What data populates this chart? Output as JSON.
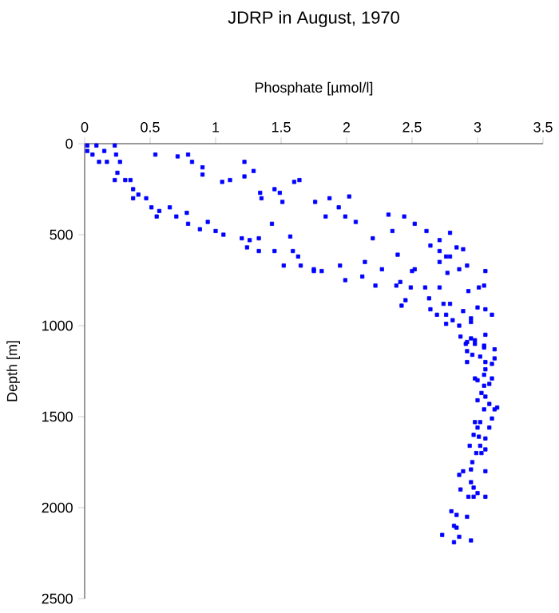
{
  "chart_data": {
    "type": "scatter",
    "title": "JDRP in August, 1970",
    "xlabel": "Phosphate [µmol/l]",
    "ylabel": "Depth [m]",
    "xlim": [
      0,
      3.5
    ],
    "xticks": [
      0,
      0.5,
      1,
      1.5,
      2,
      2.5,
      3,
      3.5
    ],
    "ylim": [
      2500,
      0
    ],
    "yticks": [
      0,
      500,
      1000,
      1500,
      2000,
      2500
    ],
    "grid": false,
    "marker": "square",
    "series": [
      {
        "color": "#0000ff",
        "x": [
          0.02,
          0.09,
          0.23,
          0.02,
          0.06,
          0.15,
          0.24,
          0.11,
          0.17,
          0.27,
          0.23,
          0.25,
          0.31,
          0.35,
          0.37,
          0.41,
          0.37,
          0.47,
          0.51,
          0.57,
          0.55,
          0.65,
          0.7,
          0.78,
          0.79,
          0.88,
          0.94,
          1.0,
          1.06,
          1.2,
          1.26,
          1.33,
          1.24,
          1.33,
          1.45,
          1.52,
          1.59,
          1.65,
          1.63,
          1.75,
          1.43,
          1.57,
          0.54,
          0.71,
          0.79,
          0.82,
          0.9,
          0.9,
          1.05,
          1.11,
          1.22,
          1.29,
          1.22,
          1.34,
          1.35,
          1.45,
          1.49,
          1.51,
          1.6,
          1.64,
          1.76,
          1.87,
          1.94,
          2.02,
          1.84,
          1.99,
          2.07,
          2.2,
          2.32,
          2.44,
          2.35,
          2.52,
          2.39,
          2.61,
          2.71,
          2.64,
          2.79,
          2.84,
          2.89,
          2.71,
          2.76,
          2.79,
          2.71,
          2.77,
          2.86,
          2.92,
          3.06,
          2.14,
          2.27,
          2.5,
          2.52,
          2.12,
          2.22,
          2.38,
          2.41,
          2.49,
          2.6,
          2.71,
          2.45,
          2.42,
          2.63,
          2.64,
          2.74,
          2.79,
          2.69,
          2.76,
          2.81,
          2.89,
          2.95,
          3.0,
          3.06,
          3.11,
          3.01,
          3.05,
          2.93,
          2.76,
          2.86,
          2.87,
          2.92,
          2.95,
          2.98,
          3.06,
          3.05,
          3.13,
          1.75,
          1.81,
          1.95,
          1.99,
          2.95,
          2.91,
          2.98,
          2.92,
          2.96,
          3.05,
          3.02,
          3.06,
          3.11,
          3.13,
          2.92,
          3.06,
          3.05,
          2.98,
          3.0,
          3.11,
          3.05,
          3.09,
          3.03,
          3.06,
          3.0,
          3.09,
          3.15,
          3.05,
          3.13,
          3.11,
          2.98,
          3.02,
          3.09,
          3.0,
          2.97,
          3.01,
          3.06,
          2.94,
          3.02,
          3.06,
          2.99,
          3.03,
          2.96,
          2.95,
          2.89,
          2.86,
          3.06,
          2.95,
          2.87,
          2.97,
          3.0,
          2.93,
          2.97,
          3.06,
          2.8,
          2.84,
          2.92,
          2.82,
          2.84,
          2.73,
          2.86,
          2.82,
          2.95
        ],
        "values": [
          10,
          10,
          10,
          40,
          60,
          40,
          60,
          100,
          100,
          100,
          200,
          160,
          200,
          200,
          250,
          280,
          300,
          300,
          350,
          370,
          400,
          350,
          400,
          380,
          440,
          470,
          430,
          480,
          500,
          520,
          530,
          520,
          570,
          590,
          590,
          670,
          590,
          670,
          620,
          690,
          440,
          510,
          60,
          70,
          60,
          100,
          130,
          170,
          210,
          200,
          100,
          150,
          180,
          270,
          300,
          250,
          270,
          320,
          210,
          200,
          320,
          300,
          350,
          290,
          400,
          400,
          430,
          520,
          390,
          400,
          480,
          440,
          610,
          480,
          530,
          560,
          490,
          570,
          580,
          590,
          620,
          620,
          650,
          710,
          690,
          670,
          700,
          650,
          690,
          700,
          690,
          730,
          780,
          780,
          760,
          790,
          790,
          790,
          860,
          890,
          850,
          910,
          880,
          880,
          940,
          940,
          970,
          920,
          960,
          900,
          910,
          940,
          790,
          780,
          810,
          990,
          1000,
          1060,
          1090,
          1070,
          1100,
          1050,
          1110,
          1130,
          700,
          700,
          670,
          750,
          980,
          1100,
          1080,
          1140,
          1160,
          1120,
          1170,
          1200,
          1210,
          1180,
          1200,
          1240,
          1270,
          1290,
          1300,
          1290,
          1330,
          1320,
          1370,
          1390,
          1410,
          1430,
          1450,
          1460,
          1460,
          1510,
          1530,
          1530,
          1560,
          1560,
          1600,
          1610,
          1620,
          1660,
          1660,
          1680,
          1700,
          1700,
          1750,
          1790,
          1800,
          1820,
          1800,
          1860,
          1900,
          1890,
          1920,
          1940,
          1940,
          1940,
          2020,
          2040,
          2050,
          2100,
          2110,
          2150,
          2160,
          2190,
          2180
        ]
      }
    ]
  }
}
